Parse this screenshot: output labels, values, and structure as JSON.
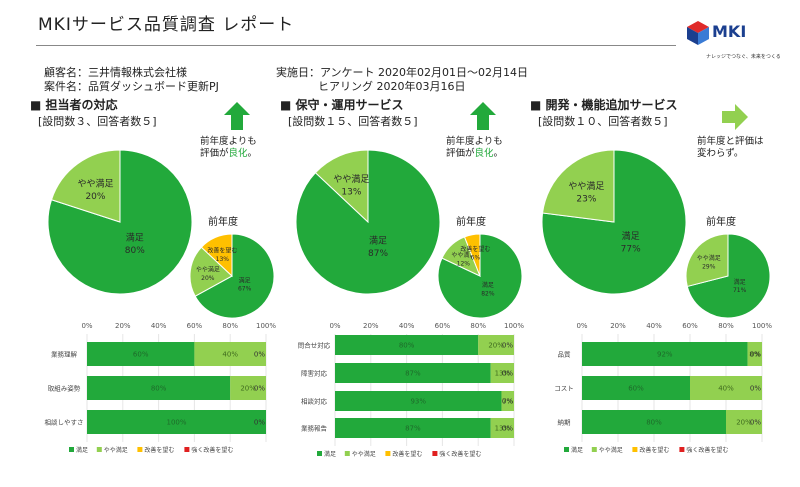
{
  "header": {
    "title": "MKIサービス品質調査 レポート",
    "customer": "顧客名：三井情報株式会社様",
    "project": "案件名：品質ダッシュボード更新PJ",
    "date1": "実施日：アンケート 2020年02月01日～02月14日",
    "date2": "ヒアリング 2020年03月16日"
  },
  "logo": {
    "text": "MKI",
    "tagline": "ナレッジでつなぐ、未来をつくる"
  },
  "colors": {
    "satisfied": "#22a93b",
    "somewhat": "#92d050",
    "improve": "#ffc000",
    "strong": "#e02020",
    "arrow": "#22a93b"
  },
  "sections": [
    {
      "title": "■ 担当者の対応",
      "subtitle": "[設問数３、回答者数５]",
      "note1": "前年度よりも",
      "note2_pre": "評価が",
      "note2_good": "良化",
      "note2_post": "。",
      "prev_label": "前年度",
      "trend": "up"
    },
    {
      "title": "■ 保守・運用サービス",
      "subtitle": "[設問数１５、回答者数５]",
      "note1": "前年度よりも",
      "note2_pre": "評価が",
      "note2_good": "良化",
      "note2_post": "。",
      "prev_label": "前年度",
      "trend": "up"
    },
    {
      "title": "■ 開発・機能追加サービス",
      "subtitle": "[設問数１０、回答者数５]",
      "note1": "前年度と評価は",
      "note2_pre": "変わらず。",
      "note2_good": "",
      "note2_post": "",
      "prev_label": "前年度",
      "trend": "flat"
    }
  ],
  "chart_data": [
    {
      "type": "pie",
      "title": "担当者の対応",
      "slices": [
        {
          "label": "満足",
          "value": 80
        },
        {
          "label": "やや満足",
          "value": 20
        }
      ]
    },
    {
      "type": "pie",
      "title": "担当者の対応 前年度",
      "slices": [
        {
          "label": "満足",
          "value": 67
        },
        {
          "label": "やや満足",
          "value": 20
        },
        {
          "label": "改善を望む",
          "value": 13
        }
      ]
    },
    {
      "type": "pie",
      "title": "保守・運用サービス",
      "slices": [
        {
          "label": "満足",
          "value": 87
        },
        {
          "label": "やや満足",
          "value": 13
        }
      ]
    },
    {
      "type": "pie",
      "title": "保守・運用サービス 前年度",
      "slices": [
        {
          "label": "満足",
          "value": 82
        },
        {
          "label": "やや満足",
          "value": 12
        },
        {
          "label": "改善を望む",
          "value": 6
        }
      ]
    },
    {
      "type": "pie",
      "title": "開発・機能追加サービス",
      "slices": [
        {
          "label": "満足",
          "value": 77
        },
        {
          "label": "やや満足",
          "value": 23
        }
      ]
    },
    {
      "type": "pie",
      "title": "開発・機能追加サービス 前年度",
      "slices": [
        {
          "label": "満足",
          "value": 71
        },
        {
          "label": "やや満足",
          "value": 29
        }
      ]
    },
    {
      "type": "bar",
      "orientation": "horizontal",
      "stacked": true,
      "xlim": [
        0,
        100
      ],
      "x_ticks": [
        "0%",
        "20%",
        "40%",
        "60%",
        "80%",
        "100%"
      ],
      "categories": [
        "業務理解",
        "取組み姿勢",
        "相談しやすさ"
      ],
      "series": [
        {
          "name": "満足",
          "values": [
            60,
            80,
            100
          ]
        },
        {
          "name": "やや満足",
          "values": [
            40,
            20,
            0
          ]
        },
        {
          "name": "改善を望む",
          "values": [
            0,
            0,
            0
          ]
        },
        {
          "name": "強く改善を望む",
          "values": [
            0,
            0,
            0
          ]
        }
      ],
      "labels": [
        [
          "60%",
          "40%",
          "0%"
        ],
        [
          "80%",
          "20%",
          "0%"
        ],
        [
          "100%",
          "",
          "0%"
        ]
      ]
    },
    {
      "type": "bar",
      "orientation": "horizontal",
      "stacked": true,
      "xlim": [
        0,
        100
      ],
      "x_ticks": [
        "0%",
        "20%",
        "40%",
        "60%",
        "80%",
        "100%"
      ],
      "categories": [
        "問合せ対応",
        "障害対応",
        "相談対応",
        "業務報告"
      ],
      "series": [
        {
          "name": "満足",
          "values": [
            80,
            87,
            93,
            87
          ]
        },
        {
          "name": "やや満足",
          "values": [
            20,
            13,
            7,
            13
          ]
        },
        {
          "name": "改善を望む",
          "values": [
            0,
            0,
            0,
            0
          ]
        },
        {
          "name": "強く改善を望む",
          "values": [
            0,
            0,
            0,
            0
          ]
        }
      ],
      "labels": [
        [
          "80%",
          "20%",
          "0%"
        ],
        [
          "87%",
          "13%",
          "0%"
        ],
        [
          "93%",
          "7%",
          "0%"
        ],
        [
          "87%",
          "13%",
          "0%"
        ]
      ]
    },
    {
      "type": "bar",
      "orientation": "horizontal",
      "stacked": true,
      "xlim": [
        0,
        100
      ],
      "x_ticks": [
        "0%",
        "20%",
        "40%",
        "60%",
        "80%",
        "100%"
      ],
      "categories": [
        "品質",
        "コスト",
        "納期"
      ],
      "series": [
        {
          "name": "満足",
          "values": [
            92,
            60,
            80
          ]
        },
        {
          "name": "やや満足",
          "values": [
            8,
            40,
            20
          ]
        },
        {
          "name": "改善を望む",
          "values": [
            0,
            0,
            0
          ]
        },
        {
          "name": "強く改善を望む",
          "values": [
            0,
            0,
            0
          ]
        }
      ],
      "labels": [
        [
          "92%",
          "8%",
          "0%"
        ],
        [
          "60%",
          "40%",
          "0%"
        ],
        [
          "80%",
          "20%",
          "0%"
        ]
      ]
    }
  ],
  "legend": [
    "満足",
    "やや満足",
    "改善を望む",
    "強く改善を望む"
  ]
}
